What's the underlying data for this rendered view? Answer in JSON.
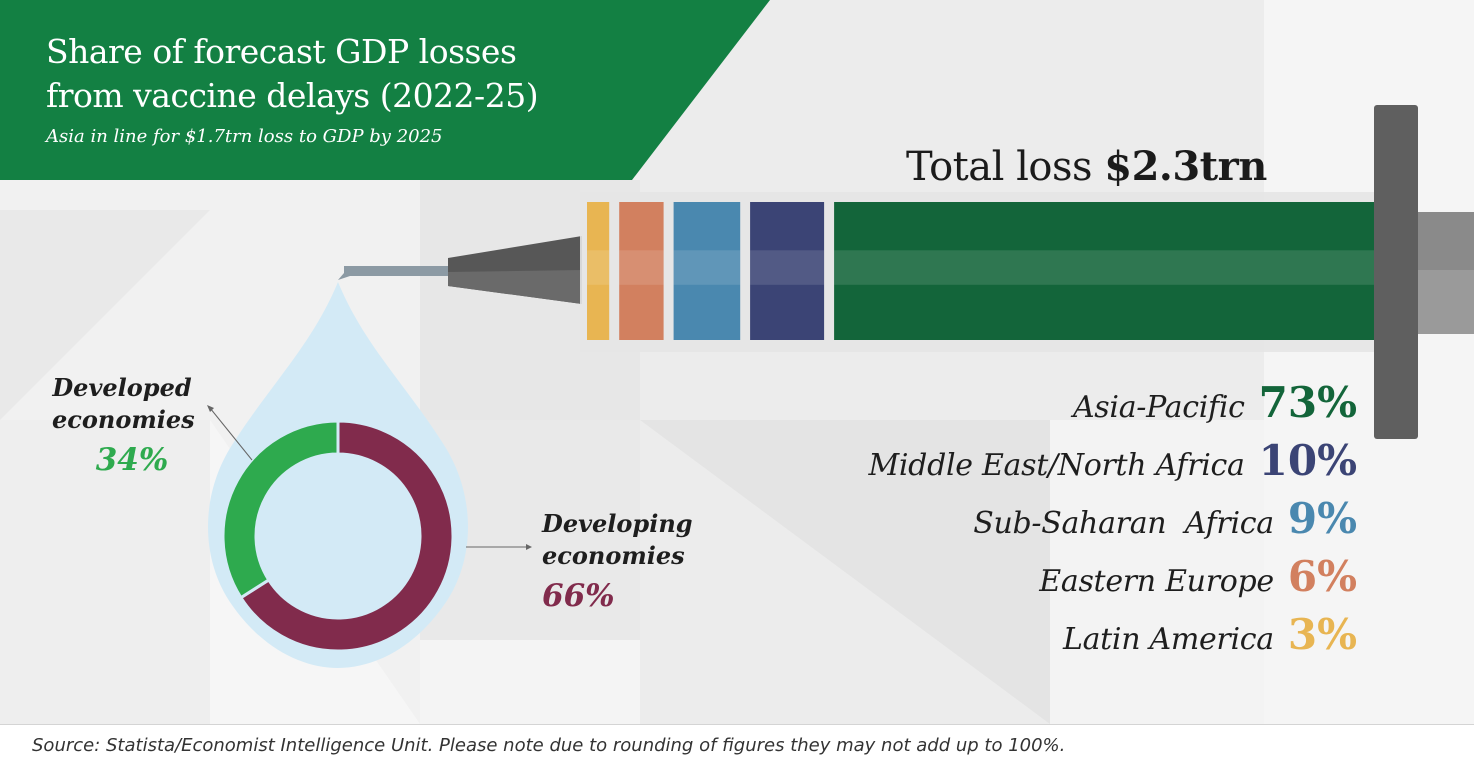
{
  "header": {
    "title": "Share of forecast GDP losses\nfrom vaccine delays (2022-25)",
    "subtitle": "Asia in line for $1.7trn loss to GDP by 2025"
  },
  "total": {
    "prefix": "Total loss ",
    "value": "$2.3trn"
  },
  "footer": {
    "source": "Source: Statista/Economist Intelligence Unit. Please note due to rounding of figures they may not add up to 100%."
  },
  "colors": {
    "banner": "#138043",
    "asia": "#13653A",
    "mena": "#3B4475",
    "ssa": "#4A88AF",
    "eeurope": "#D2805F",
    "latam": "#E8B552",
    "developed": "#2EAA4E",
    "developing": "#812B4C",
    "drop": "#D3EAF6"
  },
  "chart_data": [
    {
      "type": "bar",
      "title": "Total loss $2.3trn",
      "categories": [
        "Asia-Pacific",
        "Middle East/North Africa",
        "Sub-Saharan Africa",
        "Eastern Europe",
        "Latin America"
      ],
      "values": [
        73,
        10,
        9,
        6,
        3
      ],
      "labels": [
        "73%",
        "10%",
        "9%",
        "6%",
        "3%"
      ],
      "unit": "%",
      "colors": [
        "#13653A",
        "#3B4475",
        "#4A88AF",
        "#D2805F",
        "#E8B552"
      ]
    },
    {
      "type": "pie",
      "categories": [
        "Developed economies",
        "Developing economies"
      ],
      "values": [
        34,
        66
      ],
      "labels": [
        "34%",
        "66%"
      ],
      "unit": "%",
      "colors": [
        "#2EAA4E",
        "#812B4C"
      ]
    }
  ],
  "regions": [
    {
      "name": "Asia-Pacific",
      "pct": "73%",
      "color": "#13653A"
    },
    {
      "name": "Middle East/North Africa",
      "pct": "10%",
      "color": "#3B4475"
    },
    {
      "name": "Sub-Saharan  Africa",
      "pct": "9%",
      "color": "#4A88AF"
    },
    {
      "name": "Eastern Europe",
      "pct": "6%",
      "color": "#D2805F"
    },
    {
      "name": "Latin America",
      "pct": "3%",
      "color": "#E8B552"
    }
  ],
  "donut": {
    "developed": {
      "line1": "Developed",
      "line2": "economies",
      "pct": "34%"
    },
    "developing": {
      "line1": "Developing",
      "line2": "economies",
      "pct": "66%"
    }
  }
}
